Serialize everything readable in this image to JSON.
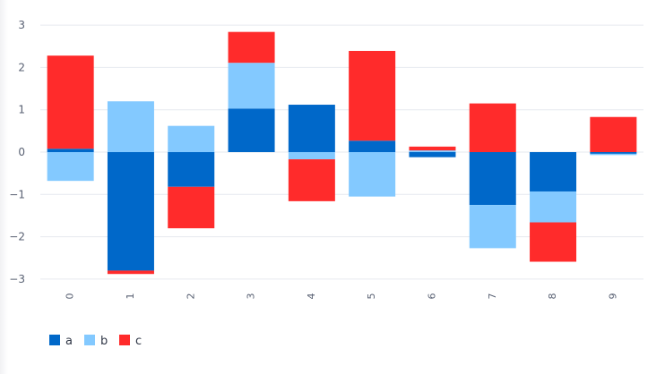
{
  "chart_data": {
    "type": "bar",
    "stacked": true,
    "categories": [
      "0",
      "1",
      "2",
      "3",
      "4",
      "5",
      "6",
      "7",
      "8",
      "9"
    ],
    "series": [
      {
        "name": "a",
        "color": "#0068c9",
        "values": [
          0.08,
          -2.8,
          -0.82,
          1.03,
          1.12,
          0.27,
          -0.12,
          -1.25,
          -0.93,
          -0.04
        ]
      },
      {
        "name": "b",
        "color": "#83c9ff",
        "values": [
          -0.68,
          1.2,
          0.62,
          1.08,
          -0.17,
          -1.05,
          0.04,
          -1.02,
          -0.73,
          -0.03
        ]
      },
      {
        "name": "c",
        "color": "#ff2b2b",
        "values": [
          2.2,
          -0.08,
          -0.98,
          0.73,
          -0.99,
          2.12,
          0.09,
          1.15,
          -0.93,
          0.83
        ]
      }
    ],
    "yticks": [
      -3,
      -2,
      -1,
      0,
      1,
      2,
      3
    ],
    "ylim": [
      -3.2,
      3.3
    ],
    "xlabel": "",
    "ylabel": "",
    "title": "",
    "grid": true,
    "legend": "bottom-left"
  }
}
